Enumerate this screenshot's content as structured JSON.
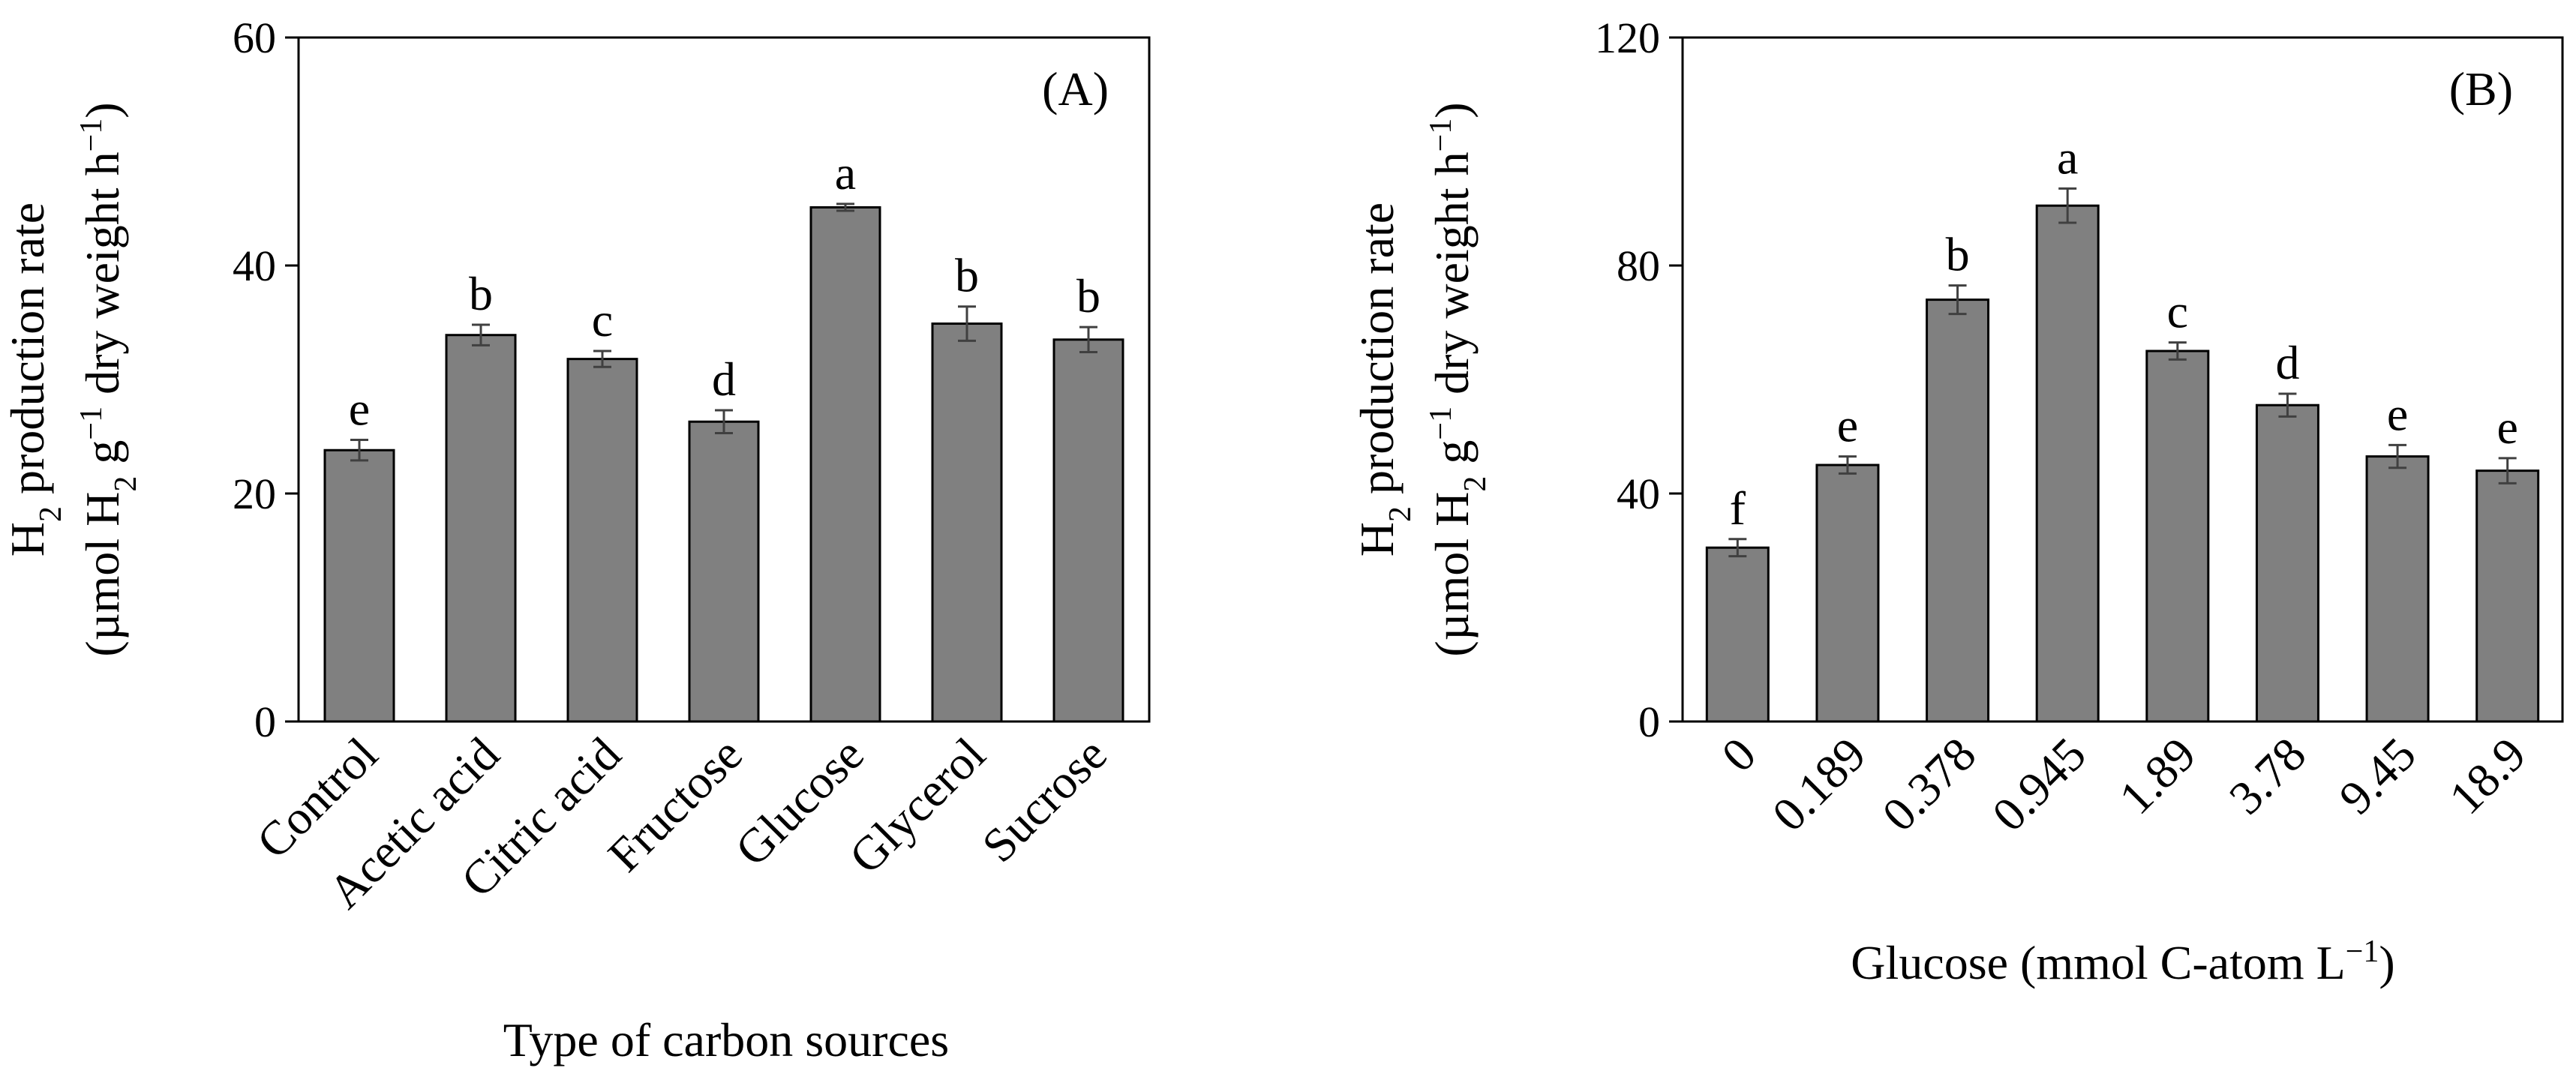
{
  "figure": {
    "colors": {
      "bar_fill": "#808080",
      "bar_stroke": "#000000",
      "error_bar": "#404040",
      "axis": "#000000",
      "background": "#ffffff"
    }
  },
  "chart_data": [
    {
      "type": "bar",
      "panel_label": "(A)",
      "ylabel_line1_main": "H",
      "ylabel_line1_sub": "2",
      "ylabel_line1_rest": " production rate",
      "ylabel_line2_a": "(µmol H",
      "ylabel_line2_sub": "2",
      "ylabel_line2_b": " g",
      "ylabel_line2_sup1": "−1",
      "ylabel_line2_c": " dry weight h",
      "ylabel_line2_sup2": "−1",
      "ylabel_line2_d": ")",
      "xlabel_main": "Type of carbon sources",
      "xlabel_sup": "",
      "xlabel_end": "",
      "ylim": [
        0,
        60
      ],
      "yticks": [
        "0",
        "20",
        "40",
        "60"
      ],
      "grid": false,
      "categories": [
        "Control",
        "Acetic acid",
        "Citric acid",
        "Fructose",
        "Glucose",
        "Glycerol",
        "Sucrose"
      ],
      "values": [
        23.8,
        33.9,
        31.8,
        26.3,
        45.1,
        34.9,
        33.5
      ],
      "errors": [
        0.9,
        0.9,
        0.7,
        1.0,
        0.3,
        1.5,
        1.1
      ],
      "significance_letters": [
        "e",
        "b",
        "c",
        "d",
        "a",
        "b",
        "b"
      ]
    },
    {
      "type": "bar",
      "panel_label": "(B)",
      "ylabel_line1_main": "H",
      "ylabel_line1_sub": "2",
      "ylabel_line1_rest": " production rate",
      "ylabel_line2_a": "(µmol H",
      "ylabel_line2_sub": "2",
      "ylabel_line2_b": " g",
      "ylabel_line2_sup1": "−1",
      "ylabel_line2_c": " dry weight h",
      "ylabel_line2_sup2": "−1",
      "ylabel_line2_d": ")",
      "xlabel_main": "Glucose (mmol C-atom L",
      "xlabel_sup": "−1",
      "xlabel_end": ")",
      "ylim": [
        0,
        120
      ],
      "yticks": [
        "0",
        "40",
        "80",
        "120"
      ],
      "grid": false,
      "categories": [
        "0",
        "0.189",
        "0.378",
        "0.945",
        "1.89",
        "3.78",
        "9.45",
        "18.9"
      ],
      "values": [
        30.5,
        45.0,
        74.0,
        90.5,
        65.0,
        55.5,
        46.5,
        44.0
      ],
      "errors": [
        1.5,
        1.5,
        2.5,
        3.0,
        1.5,
        2.0,
        2.0,
        2.2
      ],
      "significance_letters": [
        "f",
        "e",
        "b",
        "a",
        "c",
        "d",
        "e",
        "e"
      ]
    }
  ]
}
